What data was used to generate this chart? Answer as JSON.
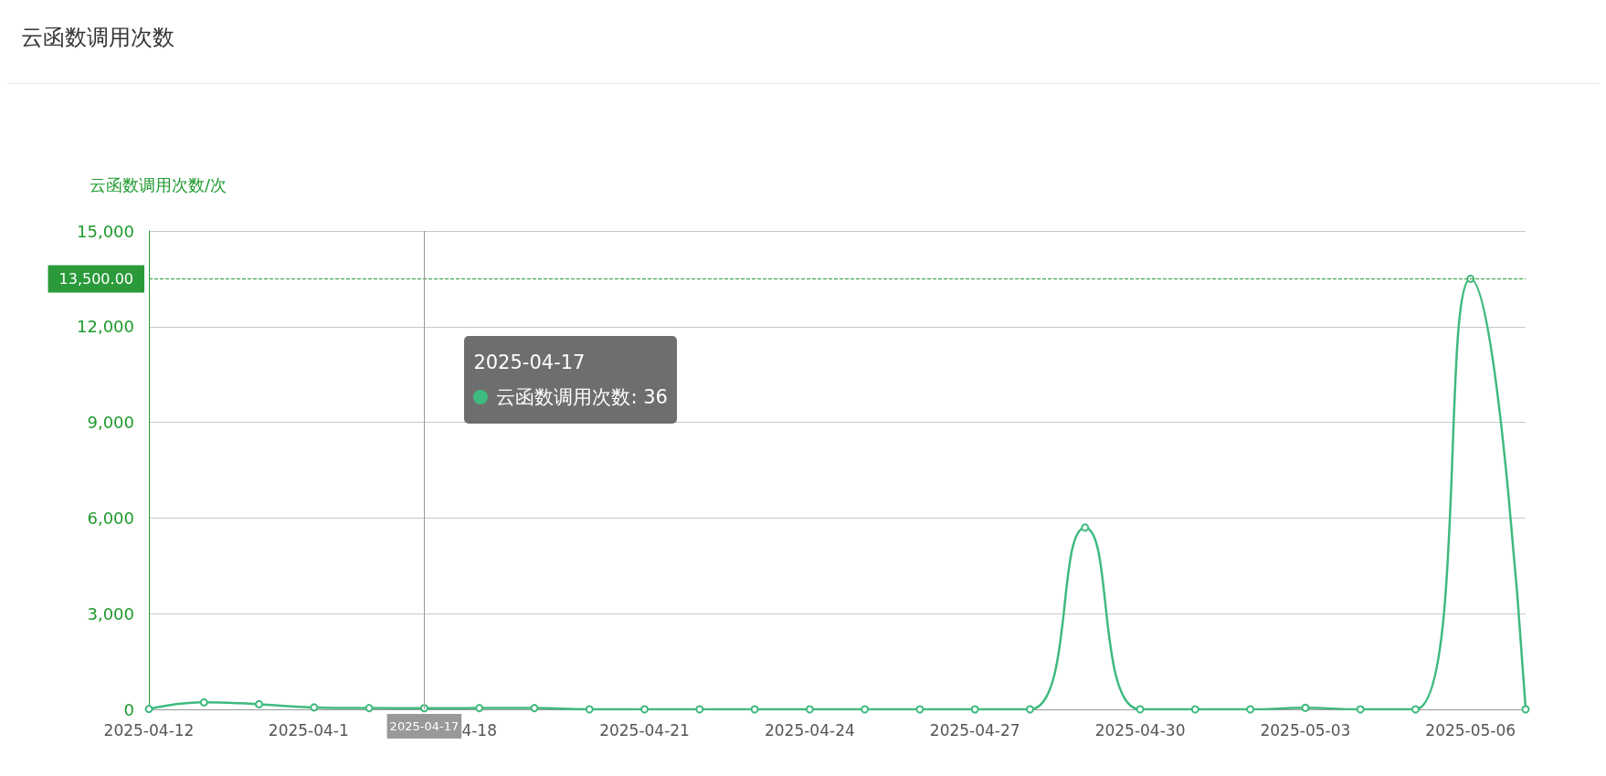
{
  "chart_data": {
    "type": "line",
    "title": "云函数调用次数",
    "ylabel": "云函数调用次数/次",
    "x": [
      "2025-04-12",
      "2025-04-13",
      "2025-04-14",
      "2025-04-15",
      "2025-04-16",
      "2025-04-17",
      "2025-04-18",
      "2025-04-19",
      "2025-04-20",
      "2025-04-21",
      "2025-04-22",
      "2025-04-23",
      "2025-04-24",
      "2025-04-25",
      "2025-04-26",
      "2025-04-27",
      "2025-04-28",
      "2025-04-29",
      "2025-04-30",
      "2025-05-01",
      "2025-05-02",
      "2025-05-03",
      "2025-05-04",
      "2025-05-05",
      "2025-05-06",
      "2025-05-07"
    ],
    "series": [
      {
        "color": "#3fba7e",
        "values": [
          10,
          220,
          160,
          60,
          40,
          36,
          40,
          40,
          0,
          0,
          0,
          0,
          0,
          0,
          0,
          0,
          0,
          5700,
          0,
          0,
          0,
          50,
          0,
          0,
          13500,
          0
        ]
      }
    ],
    "xlim": [
      "2025-04-12",
      "2025-05-07"
    ],
    "xticks": [
      "2025-04-12",
      {
        "value": "2025-04-15",
        "label": "2025-04-1"
      },
      {
        "value": "2025-04-18",
        "label": "4-18"
      },
      "2025-04-21",
      "2025-04-24",
      "2025-04-27",
      "2025-04-30",
      "2025-05-03",
      "2025-05-06"
    ],
    "ylim": [
      0,
      15000
    ],
    "yticks": [
      0,
      {
        "value": 3000,
        "label": "3,000"
      },
      {
        "value": 6000,
        "label": "6,000"
      },
      {
        "value": 9000,
        "label": "9,000"
      },
      {
        "value": 12000,
        "label": "12,000"
      },
      {
        "value": 15000,
        "label": "15,000"
      }
    ],
    "grid": "y",
    "marker": "circle",
    "line_style": "solid",
    "ref_lines": [
      {
        "axis": "y",
        "value": 13500,
        "label": "13,500.00",
        "color": "#2a9a3a",
        "line_style": "dashed"
      },
      {
        "axis": "x",
        "value": "2025-04-17",
        "label": "2025-04-17",
        "color": "#999999",
        "line_style": "solid"
      }
    ],
    "annotations": [
      "2025-04-17",
      "云函数调用次数: 36"
    ]
  }
}
